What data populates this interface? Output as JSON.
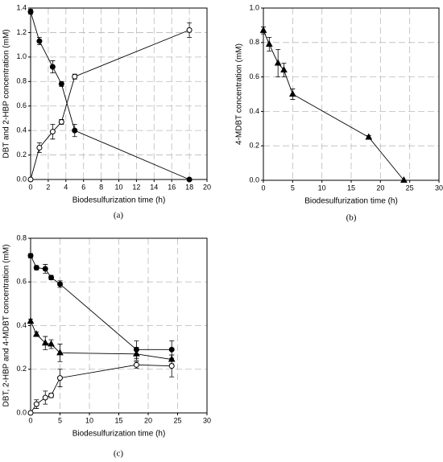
{
  "chart_data": [
    {
      "type": "line",
      "panel": "(a)",
      "x_label": "Biodesulfurization time (h)",
      "y_label": "DBT and 2-HBP concentration (mM)",
      "xlim": [
        0,
        20
      ],
      "xticks": [
        0,
        2,
        4,
        6,
        8,
        10,
        12,
        14,
        16,
        18,
        20
      ],
      "ylim": [
        0,
        1.4
      ],
      "yticks": [
        {
          "value": 0,
          "label": "0.0"
        },
        0.2,
        0.4,
        0.6,
        0.8,
        {
          "value": 1,
          "label": "1.0"
        },
        1.2,
        1.4
      ],
      "grid": true,
      "x": [
        0,
        1,
        2.5,
        3.5,
        5,
        18
      ],
      "series": [
        {
          "marker": "circle-filled",
          "color": "#000000",
          "values": [
            1.37,
            1.13,
            0.92,
            0.78,
            0.4,
            0.0
          ],
          "errors": [
            0.02,
            0.03,
            0.05,
            0.02,
            0.05,
            0.0
          ]
        },
        {
          "marker": "circle-open",
          "color": "#000000",
          "values": [
            0.0,
            0.26,
            0.39,
            0.47,
            0.84,
            1.22
          ],
          "errors": [
            0.0,
            0.04,
            0.06,
            0.02,
            0.02,
            0.06
          ]
        }
      ]
    },
    {
      "type": "line",
      "panel": "(b)",
      "x_label": "Biodesulfurization time (h)",
      "y_label": "4-MDBT concentration (mM)",
      "xlim": [
        0,
        30
      ],
      "xticks": [
        0,
        5,
        10,
        15,
        20,
        25,
        30
      ],
      "ylim": [
        0,
        1
      ],
      "yticks": [
        {
          "value": 0,
          "label": "0.0"
        },
        0.2,
        0.4,
        0.6,
        0.8,
        {
          "value": 1,
          "label": "1.0"
        }
      ],
      "grid": true,
      "x": [
        0,
        1,
        2.5,
        3.5,
        5,
        18,
        24
      ],
      "series": [
        {
          "marker": "triangle",
          "color": "#000000",
          "values": [
            0.87,
            0.79,
            0.68,
            0.64,
            0.5,
            0.25,
            0.0
          ],
          "errors": [
            0.02,
            0.04,
            0.08,
            0.04,
            0.03,
            0.01,
            0.0
          ]
        }
      ]
    },
    {
      "type": "line",
      "panel": "(c)",
      "x_label": "Biodesulfurization time (h)",
      "y_label": "DBT, 2-HBP and 4-MDBT concentration (mM)",
      "xlim": [
        0,
        30
      ],
      "xticks": [
        0,
        5,
        10,
        15,
        20,
        25,
        30
      ],
      "ylim": [
        0,
        0.8
      ],
      "yticks": [
        {
          "value": 0,
          "label": "0.0"
        },
        0.2,
        0.4,
        0.6,
        0.8
      ],
      "grid": true,
      "x": [
        0,
        1,
        2.5,
        3.5,
        5,
        18,
        24
      ],
      "series": [
        {
          "marker": "circle-filled",
          "color": "#000000",
          "values": [
            0.72,
            0.665,
            0.66,
            0.62,
            0.59,
            0.29,
            0.29
          ],
          "errors": [
            0.01,
            0.01,
            0.02,
            0.01,
            0.015,
            0.04,
            0.04
          ]
        },
        {
          "marker": "triangle",
          "color": "#000000",
          "values": [
            0.42,
            0.36,
            0.32,
            0.315,
            0.275,
            0.27,
            0.245
          ],
          "errors": [
            0.01,
            0.01,
            0.03,
            0.02,
            0.04,
            0.03,
            0.02
          ]
        },
        {
          "marker": "circle-open",
          "color": "#000000",
          "values": [
            0.0,
            0.04,
            0.07,
            0.08,
            0.16,
            0.22,
            0.215
          ],
          "errors": [
            0.0,
            0.02,
            0.03,
            0.01,
            0.04,
            0.015,
            0.05
          ]
        }
      ]
    }
  ]
}
